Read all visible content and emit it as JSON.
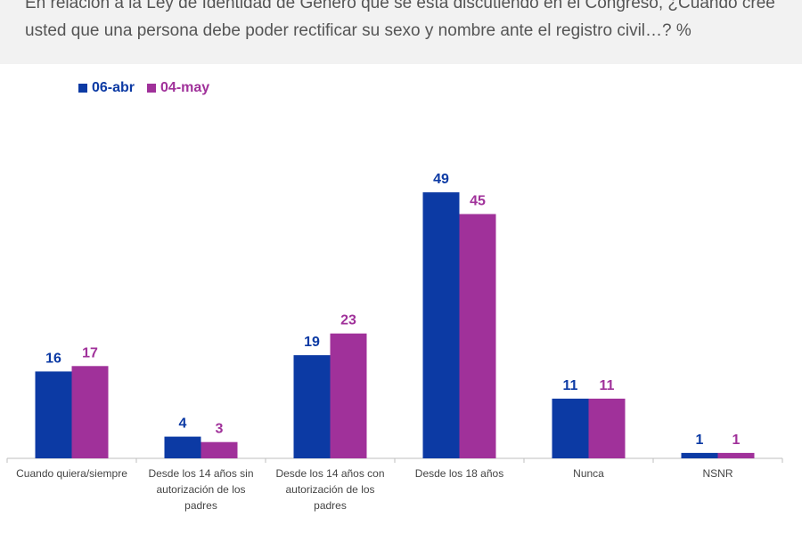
{
  "question": "En relación a la Ley de Identidad de Género que se está discutiendo en el Congreso, ¿Cuándo cree usted que una persona debe poder rectificar su sexo y nombre ante el registro civil…? %",
  "chart_data": {
    "type": "bar",
    "title": "",
    "xlabel": "",
    "ylabel": "",
    "ylim": [
      0,
      60
    ],
    "grid": false,
    "legend_position": "top-left",
    "categories": [
      [
        "Cuando quiera/siempre"
      ],
      [
        "Desde los 14 años sin",
        "autorización de los",
        "padres"
      ],
      [
        "Desde los 14 años con",
        "autorización de los",
        "padres"
      ],
      [
        "Desde los 18 años"
      ],
      [
        "Nunca"
      ],
      [
        "NSNR"
      ]
    ],
    "series": [
      {
        "name": "06-abr",
        "color": "#0c3aa4",
        "values": [
          16,
          4,
          19,
          49,
          11,
          1
        ]
      },
      {
        "name": "04-may",
        "color": "#a0319a",
        "values": [
          17,
          3,
          23,
          45,
          11,
          1
        ]
      }
    ]
  }
}
